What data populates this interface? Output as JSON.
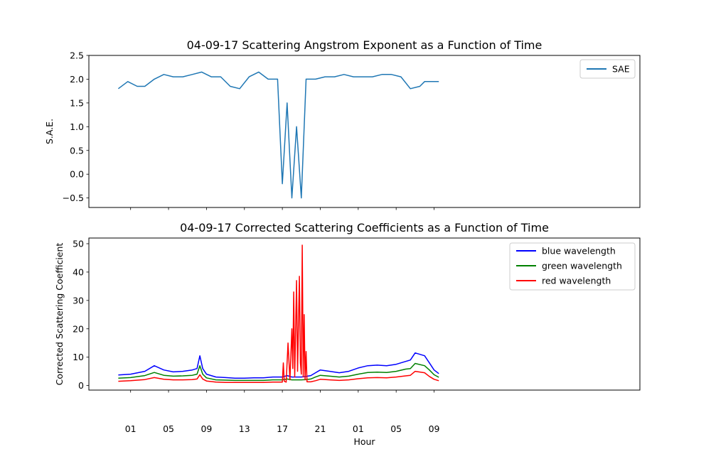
{
  "chart_data": [
    {
      "type": "line",
      "title": "04-09-17 Scattering Angstrom Exponent as a Function of Time",
      "xlabel": "",
      "ylabel": "S.A.E.",
      "ylim": [
        -0.7,
        2.5
      ],
      "yticks": [
        "2.5",
        "2.0",
        "1.5",
        "1.0",
        "0.5",
        "0.0",
        "−0.5"
      ],
      "ytick_values": [
        2.5,
        2.0,
        1.5,
        1.0,
        0.5,
        0.0,
        -0.5
      ],
      "x_unit": "hours since 00:00 on 04-09-17",
      "xlim": [
        -3.4,
        54.7
      ],
      "xtick_values": [
        1,
        5,
        9,
        13,
        17,
        21,
        25,
        29,
        33
      ],
      "xticks_labels_shown": false,
      "legend": "upper right",
      "grid": false,
      "series": [
        {
          "name": "SAE",
          "color": "#1f77b4",
          "x": [
            -0.3,
            0.7,
            1.7,
            2.5,
            3.5,
            4.5,
            5.5,
            6.5,
            7.5,
            8.5,
            9.5,
            10.5,
            11.5,
            12.5,
            13.5,
            14.5,
            15.5,
            16.5,
            17.0,
            17.5,
            18.0,
            18.5,
            19.0,
            19.5,
            20.5,
            21.5,
            22.5,
            23.5,
            24.5,
            25.5,
            26.5,
            27.5,
            28.5,
            29.5,
            30.5,
            31.5,
            32.0,
            32.5,
            33.0,
            33.5
          ],
          "y": [
            1.8,
            1.95,
            1.85,
            1.85,
            2.0,
            2.1,
            2.05,
            2.05,
            2.1,
            2.15,
            2.05,
            2.05,
            1.85,
            1.8,
            2.05,
            2.15,
            2.0,
            2.0,
            -0.2,
            1.5,
            -0.5,
            1.0,
            -0.5,
            2.0,
            2.0,
            2.05,
            2.05,
            2.1,
            2.05,
            2.05,
            2.05,
            2.1,
            2.1,
            2.05,
            1.8,
            1.85,
            1.95,
            1.95,
            1.95,
            1.95
          ]
        }
      ]
    },
    {
      "type": "line",
      "title": "04-09-17 Corrected Scattering Coefficients as a Function of Time",
      "xlabel": "Hour",
      "ylabel": "Corrected Scattering Coefficient",
      "ylim": [
        -1.6,
        52
      ],
      "yticks": [
        "50",
        "40",
        "30",
        "20",
        "10",
        "0"
      ],
      "ytick_values": [
        50,
        40,
        30,
        20,
        10,
        0
      ],
      "xlim": [
        -3.4,
        54.7
      ],
      "xtick_values": [
        1,
        5,
        9,
        13,
        17,
        21,
        25,
        29,
        33
      ],
      "xticks": [
        "01",
        "05",
        "09",
        "13",
        "17",
        "21",
        "01",
        "05",
        "09"
      ],
      "legend": "upper right",
      "grid": false,
      "series": [
        {
          "name": "blue wavelength",
          "color": "#0000ff",
          "x": [
            -0.3,
            1.0,
            2.5,
            3.5,
            4.5,
            5.5,
            6.5,
            7.5,
            8.0,
            8.3,
            8.6,
            9.0,
            10.0,
            11.0,
            12.0,
            13.0,
            14.0,
            15.0,
            16.0,
            17.0,
            17.5,
            18.0,
            18.5,
            19.0,
            19.5,
            20.0,
            20.5,
            21.0,
            22.0,
            23.0,
            24.0,
            25.0,
            26.0,
            27.0,
            28.0,
            29.0,
            30.0,
            30.5,
            31.0,
            32.0,
            32.5,
            33.0,
            33.5
          ],
          "y": [
            3.7,
            4.0,
            5.0,
            7.0,
            5.5,
            4.8,
            5.0,
            5.5,
            6.0,
            10.5,
            6.0,
            4.0,
            3.0,
            2.8,
            2.6,
            2.6,
            2.7,
            2.7,
            3.0,
            3.0,
            3.5,
            3.0,
            3.0,
            3.0,
            3.2,
            3.5,
            4.5,
            5.5,
            5.0,
            4.5,
            5.0,
            6.2,
            7.0,
            7.2,
            7.0,
            7.5,
            8.5,
            9.0,
            11.5,
            10.5,
            8.0,
            5.5,
            4.2
          ]
        },
        {
          "name": "green wavelength",
          "color": "#008000",
          "x": [
            -0.3,
            1.0,
            2.5,
            3.5,
            4.5,
            5.5,
            6.5,
            7.5,
            8.0,
            8.3,
            8.6,
            9.0,
            10.0,
            11.0,
            12.0,
            13.0,
            14.0,
            15.0,
            16.0,
            17.0,
            17.5,
            18.0,
            18.5,
            19.0,
            19.5,
            20.0,
            20.5,
            21.0,
            22.0,
            23.0,
            24.0,
            25.0,
            26.0,
            27.0,
            28.0,
            29.0,
            30.0,
            30.5,
            31.0,
            32.0,
            32.5,
            33.0,
            33.5
          ],
          "y": [
            2.6,
            2.8,
            3.5,
            4.6,
            3.6,
            3.3,
            3.4,
            3.6,
            4.0,
            7.0,
            4.0,
            2.7,
            2.0,
            1.9,
            1.8,
            1.8,
            1.8,
            1.8,
            2.0,
            2.0,
            2.3,
            2.0,
            2.0,
            2.0,
            2.1,
            2.3,
            3.0,
            3.6,
            3.3,
            3.0,
            3.3,
            4.0,
            4.6,
            4.7,
            4.6,
            5.0,
            5.8,
            6.0,
            7.8,
            7.0,
            5.5,
            3.8,
            2.9
          ]
        },
        {
          "name": "red wavelength",
          "color": "#ff0000",
          "x": [
            -0.3,
            1.0,
            2.5,
            3.5,
            4.5,
            5.5,
            6.5,
            7.5,
            8.0,
            8.3,
            8.6,
            9.0,
            10.0,
            11.0,
            12.0,
            13.0,
            14.0,
            15.0,
            16.0,
            17.0,
            17.1,
            17.2,
            17.4,
            17.6,
            17.8,
            18.0,
            18.1,
            18.2,
            18.3,
            18.5,
            18.6,
            18.8,
            18.9,
            19.0,
            19.1,
            19.2,
            19.3,
            19.4,
            19.5,
            19.6,
            20.0,
            20.5,
            21.0,
            22.0,
            23.0,
            24.0,
            25.0,
            26.0,
            27.0,
            28.0,
            29.0,
            30.0,
            30.5,
            31.0,
            32.0,
            32.5,
            33.0,
            33.5
          ],
          "y": [
            1.5,
            1.7,
            2.1,
            2.8,
            2.2,
            2.0,
            2.0,
            2.1,
            2.3,
            3.8,
            2.3,
            1.6,
            1.2,
            1.1,
            1.1,
            1.1,
            1.1,
            1.1,
            1.2,
            1.2,
            8.0,
            1.5,
            1.2,
            15.0,
            2.0,
            20.0,
            6.0,
            33.0,
            3.0,
            37.0,
            5.0,
            38.5,
            8.0,
            4.0,
            49.5,
            3.0,
            25.0,
            2.0,
            12.0,
            1.3,
            1.3,
            1.7,
            2.2,
            2.0,
            1.8,
            2.0,
            2.4,
            2.7,
            2.8,
            2.7,
            3.0,
            3.4,
            3.6,
            5.0,
            4.5,
            3.2,
            2.2,
            1.7
          ]
        }
      ]
    }
  ]
}
